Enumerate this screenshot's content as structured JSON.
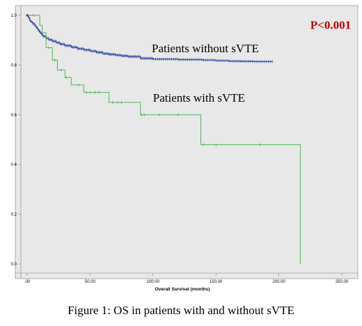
{
  "caption": "Figure 1: OS in patients with and without sVTE",
  "chart_data": {
    "type": "line",
    "step": true,
    "xlabel": "Overall Survival (months)",
    "ylabel": "",
    "xlim": [
      0,
      250
    ],
    "ylim": [
      0,
      1.0
    ],
    "x_ticks": [
      0,
      50,
      100,
      150,
      200,
      250
    ],
    "x_tick_labels": [
      ".00",
      "50.00",
      "100.00",
      "150.00",
      "200.00",
      "250.00"
    ],
    "y_ticks": [
      0,
      0.2,
      0.4,
      0.6,
      0.8,
      1.0
    ],
    "y_tick_labels": [
      "0.0",
      "0.2",
      "0.4",
      "0.6",
      "0.8",
      "1.0"
    ],
    "background": "#e8e8e8",
    "grid": false,
    "annotations": [
      {
        "text": "P<0.001",
        "x": 225,
        "y": 0.945,
        "role": "pvalue",
        "color": "#c00000"
      },
      {
        "text": "Patients without sVTE",
        "x": 99,
        "y": 0.852,
        "role": "label"
      },
      {
        "text": "Patients with sVTE",
        "x": 100,
        "y": 0.652,
        "role": "label"
      }
    ],
    "series": [
      {
        "color": "#3a4fa8",
        "censor_marks": "dense",
        "x": [
          0,
          1,
          2,
          3,
          4,
          5,
          6,
          7,
          8,
          9,
          10,
          11,
          12,
          13,
          15,
          17,
          20,
          23,
          26,
          30,
          35,
          40,
          45,
          50,
          55,
          60,
          65,
          70,
          75,
          80,
          90,
          100,
          120,
          140,
          150,
          160,
          170,
          180,
          195
        ],
        "y": [
          1.0,
          0.99,
          0.98,
          0.975,
          0.97,
          0.965,
          0.958,
          0.952,
          0.945,
          0.938,
          0.932,
          0.926,
          0.92,
          0.915,
          0.908,
          0.902,
          0.896,
          0.89,
          0.884,
          0.878,
          0.872,
          0.866,
          0.861,
          0.856,
          0.851,
          0.846,
          0.843,
          0.84,
          0.837,
          0.834,
          0.827,
          0.824,
          0.822,
          0.82,
          0.818,
          0.816,
          0.815,
          0.814,
          0.814
        ]
      },
      {
        "color": "#3cb043",
        "censor_marks": "sparse",
        "x": [
          0,
          10,
          12,
          15,
          20,
          24,
          30,
          35,
          45,
          60,
          65,
          90,
          100,
          138,
          150,
          160,
          185,
          217,
          217
        ],
        "y": [
          1.0,
          0.96,
          0.93,
          0.87,
          0.82,
          0.78,
          0.75,
          0.72,
          0.69,
          0.69,
          0.65,
          0.6,
          0.6,
          0.48,
          0.48,
          0.48,
          0.48,
          0.48,
          0.0
        ],
        "censor_x": [
          5,
          17,
          22,
          27,
          31,
          41,
          47,
          50,
          54,
          57,
          68,
          72,
          75,
          91,
          93,
          105,
          120,
          140,
          150,
          185
        ]
      }
    ]
  }
}
